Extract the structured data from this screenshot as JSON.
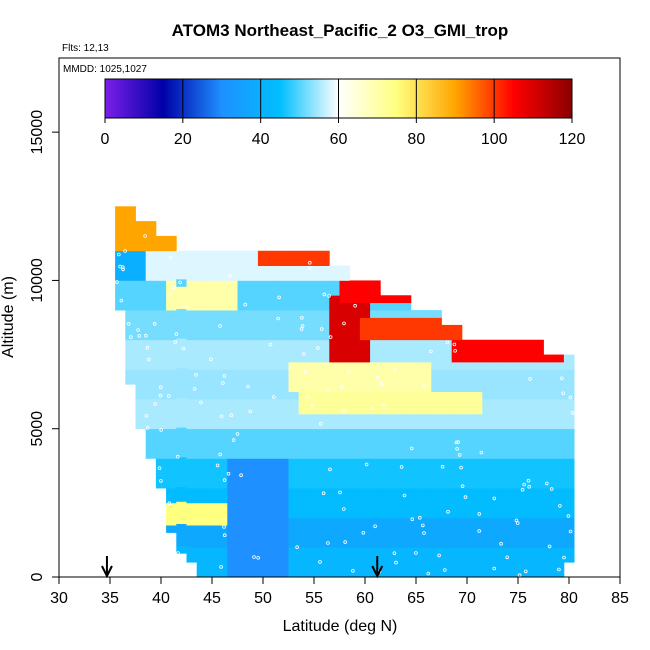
{
  "chart_data": {
    "type": "heatmap",
    "title": "ATOM3 Northeast_Pacific_2 O3_GMI_trop",
    "annotations": [
      "Flts: 12,13",
      "MMDD: 1025,1027"
    ],
    "xlabel": "Latitude (deg N)",
    "ylabel": "Altitude (m)",
    "xlim": [
      30,
      85
    ],
    "ylim": [
      0,
      17500
    ],
    "x_ticks": [
      "30",
      "35",
      "40",
      "45",
      "50",
      "55",
      "60",
      "65",
      "70",
      "75",
      "80",
      "85"
    ],
    "y_ticks": [
      "0",
      "5000",
      "10000",
      "15000"
    ],
    "colorbar": {
      "range": [
        0,
        120
      ],
      "ticks": [
        "0",
        "20",
        "40",
        "60",
        "80",
        "100",
        "120"
      ],
      "colors": [
        "#7b1fe8",
        "#0000a8",
        "#1e90ff",
        "#00bfff",
        "#ffffff",
        "#ffff80",
        "#ffa500",
        "#ff0000",
        "#8b0000"
      ]
    },
    "arrow_markers_latitude": [
      34.7,
      61.2
    ],
    "column_profiles": {
      "x_start": 35.5,
      "x_step": 1,
      "top_altitude": [
        12500,
        12500,
        12000,
        12000,
        11500,
        11500,
        11000,
        11000,
        11000,
        11000,
        11000,
        11000,
        11000,
        11000,
        11000,
        11000,
        11000,
        11000,
        11000,
        11000,
        11000,
        10500,
        10500,
        10000,
        10000,
        10000,
        9500,
        9500,
        9500,
        9000,
        9000,
        9000,
        8500,
        8500,
        8000,
        8000,
        8000,
        8000,
        8000,
        8000,
        8000,
        8000,
        7500,
        7500,
        7500
      ],
      "bottom_altitude": [
        9000,
        6500,
        5000,
        4000,
        3000,
        1500,
        800,
        500,
        0,
        0,
        0,
        0,
        0,
        0,
        0,
        0,
        0,
        0,
        0,
        0,
        0,
        0,
        0,
        0,
        0,
        0,
        0,
        0,
        0,
        0,
        0,
        0,
        0,
        0,
        0,
        0,
        0,
        0,
        0,
        0,
        0,
        0,
        0,
        0,
        500
      ]
    },
    "layers": [
      {
        "z_min": 0,
        "z_max": 1000,
        "o3": 42
      },
      {
        "z_min": 1000,
        "z_max": 2000,
        "o3": 38
      },
      {
        "z_min": 2000,
        "z_max": 3000,
        "o3": 44
      },
      {
        "z_min": 3000,
        "z_max": 4000,
        "o3": 46
      },
      {
        "z_min": 4000,
        "z_max": 5000,
        "o3": 50
      },
      {
        "z_min": 5000,
        "z_max": 6000,
        "o3": 55
      },
      {
        "z_min": 6000,
        "z_max": 7000,
        "o3": 54
      },
      {
        "z_min": 7000,
        "z_max": 8000,
        "o3": 55
      },
      {
        "z_min": 8000,
        "z_max": 9000,
        "o3": 52
      },
      {
        "z_min": 9000,
        "z_max": 10000,
        "o3": 50
      },
      {
        "z_min": 10000,
        "z_max": 11000,
        "o3": 58
      },
      {
        "z_min": 11000,
        "z_max": 13000,
        "o3": 90
      }
    ],
    "features": [
      {
        "lat_min": 47,
        "lat_max": 52,
        "z_min": 0,
        "z_max": 4000,
        "o3": 30
      },
      {
        "lat_min": 40,
        "lat_max": 46,
        "z_min": 1800,
        "z_max": 2600,
        "o3": 75
      },
      {
        "lat_min": 54,
        "lat_max": 71,
        "z_min": 5500,
        "z_max": 6200,
        "o3": 72
      },
      {
        "lat_min": 53,
        "lat_max": 66,
        "z_min": 6300,
        "z_max": 7200,
        "o3": 70
      },
      {
        "lat_min": 57,
        "lat_max": 60,
        "z_min": 7200,
        "z_max": 9500,
        "o3": 110
      },
      {
        "lat_min": 60,
        "lat_max": 69,
        "z_min": 8000,
        "z_max": 8800,
        "o3": 100
      },
      {
        "lat_min": 58,
        "lat_max": 66,
        "z_min": 9200,
        "z_max": 10000,
        "o3": 105
      },
      {
        "lat_min": 50,
        "lat_max": 56,
        "z_min": 10500,
        "z_max": 11000,
        "o3": 100
      },
      {
        "lat_min": 69,
        "lat_max": 79,
        "z_min": 7300,
        "z_max": 8000,
        "o3": 105
      },
      {
        "lat_min": 41,
        "lat_max": 47,
        "z_min": 9000,
        "z_max": 9900,
        "o3": 70
      },
      {
        "lat_min": 35,
        "lat_max": 38,
        "z_min": 10000,
        "z_max": 11000,
        "o3": 40
      }
    ]
  }
}
